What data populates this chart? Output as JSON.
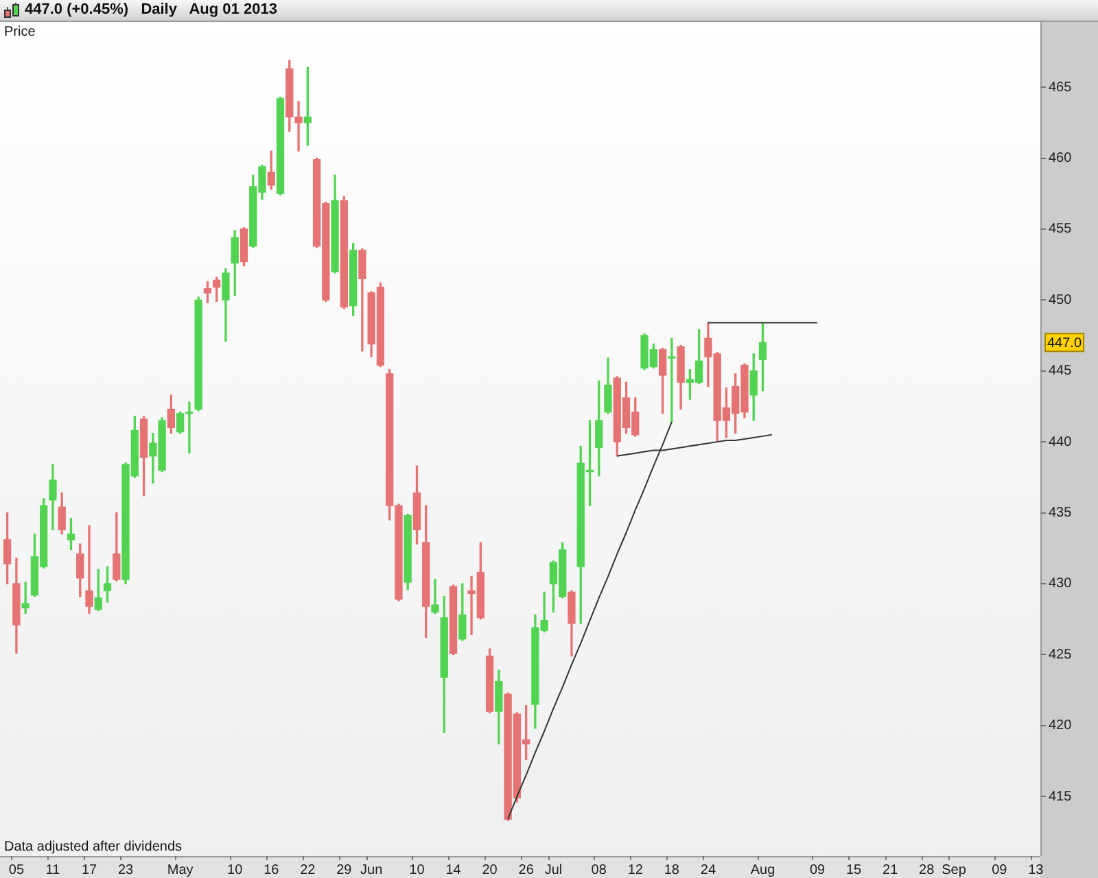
{
  "chart_data": {
    "type": "candlestick",
    "title": "447.0 (+0.45%)   Daily   Aug 01 2013",
    "ylabel": "Price",
    "annotations": [
      "Data adjusted after dividends",
      {
        "text": "447.0",
        "y": 447.0
      }
    ],
    "categories": [
      null,
      "05",
      null,
      null,
      null,
      "11",
      null,
      null,
      null,
      "17",
      null,
      null,
      null,
      "23",
      null,
      null,
      null,
      null,
      null,
      "May",
      null,
      null,
      null,
      null,
      null,
      "10",
      null,
      null,
      null,
      "16",
      null,
      null,
      null,
      "22",
      null,
      null,
      null,
      "29",
      null,
      null,
      "Jun",
      null,
      null,
      null,
      null,
      "10",
      null,
      null,
      null,
      "14",
      null,
      null,
      null,
      "20",
      null,
      null,
      null,
      "26",
      null,
      null,
      "Jul",
      null,
      null,
      null,
      null,
      "08",
      null,
      null,
      null,
      "12",
      null,
      null,
      null,
      "18",
      null,
      null,
      null,
      "24",
      null,
      null,
      null,
      null,
      null,
      "Aug",
      null,
      null,
      null,
      null,
      null,
      "09",
      null,
      null,
      null,
      "15",
      null,
      null,
      null,
      "21",
      null,
      null,
      null,
      "28",
      null,
      null,
      "Sep",
      null,
      null,
      null,
      null,
      "09",
      null,
      null,
      null,
      "13"
    ],
    "ohlc": [
      [
        433.1,
        435.0,
        430.0,
        431.4
      ],
      [
        430.0,
        431.8,
        425.1,
        427.1
      ],
      [
        428.3,
        430.1,
        427.9,
        428.6
      ],
      [
        429.2,
        433.5,
        429.1,
        431.9
      ],
      [
        431.2,
        436.0,
        431.1,
        435.5
      ],
      [
        435.9,
        438.4,
        433.8,
        437.3
      ],
      [
        435.4,
        436.4,
        433.5,
        433.8
      ],
      [
        433.1,
        434.6,
        432.4,
        433.5
      ],
      [
        432.1,
        432.8,
        429.1,
        430.4
      ],
      [
        429.5,
        434.1,
        427.9,
        428.4
      ],
      [
        428.2,
        431.0,
        428.1,
        429.0
      ],
      [
        429.5,
        431.2,
        428.7,
        430.0
      ],
      [
        432.1,
        435.0,
        430.2,
        430.3
      ],
      [
        430.3,
        438.5,
        430.0,
        438.4
      ],
      [
        437.6,
        441.8,
        437.5,
        440.8
      ],
      [
        441.6,
        441.8,
        436.2,
        438.9
      ],
      [
        439.0,
        440.6,
        437.1,
        439.9
      ],
      [
        438.0,
        441.7,
        437.9,
        441.5
      ],
      [
        442.3,
        443.3,
        440.6,
        441.0
      ],
      [
        440.7,
        442.1,
        440.6,
        442.0
      ],
      [
        442.0,
        442.8,
        439.2,
        442.0
      ],
      [
        442.3,
        450.2,
        442.2,
        450.0
      ],
      [
        450.8,
        451.3,
        449.8,
        450.5
      ],
      [
        451.4,
        451.6,
        449.9,
        450.9
      ],
      [
        450.0,
        452.2,
        447.1,
        451.9
      ],
      [
        452.6,
        454.9,
        450.3,
        454.4
      ],
      [
        455.0,
        455.1,
        452.4,
        452.7
      ],
      [
        453.8,
        458.8,
        453.7,
        458.0
      ],
      [
        457.6,
        459.5,
        457.1,
        459.4
      ],
      [
        459.0,
        460.5,
        457.8,
        458.1
      ],
      [
        457.5,
        464.3,
        457.4,
        464.2
      ],
      [
        466.3,
        466.9,
        461.9,
        462.9
      ],
      [
        462.9,
        464.0,
        460.5,
        462.5
      ],
      [
        462.5,
        466.4,
        460.9,
        462.9
      ],
      [
        459.9,
        460.0,
        453.7,
        453.8
      ],
      [
        456.8,
        456.9,
        449.9,
        450.0
      ],
      [
        452.0,
        458.8,
        451.9,
        457.0
      ],
      [
        457.0,
        457.3,
        449.4,
        449.5
      ],
      [
        449.6,
        454.0,
        448.9,
        453.5
      ],
      [
        453.5,
        453.6,
        446.4,
        451.5
      ],
      [
        450.5,
        450.6,
        446.0,
        446.9
      ],
      [
        450.9,
        451.2,
        445.3,
        445.4
      ],
      [
        444.8,
        445.1,
        434.5,
        435.5
      ],
      [
        435.5,
        435.6,
        428.8,
        428.9
      ],
      [
        430.1,
        434.9,
        429.6,
        434.8
      ],
      [
        436.4,
        438.3,
        432.8,
        433.8
      ],
      [
        432.9,
        435.5,
        426.2,
        428.4
      ],
      [
        428.0,
        430.3,
        427.9,
        428.5
      ],
      [
        423.4,
        429.1,
        419.5,
        427.6
      ],
      [
        429.8,
        429.9,
        425.0,
        425.1
      ],
      [
        426.1,
        430.0,
        426.0,
        427.8
      ],
      [
        429.5,
        430.5,
        426.4,
        429.3
      ],
      [
        430.8,
        432.9,
        427.5,
        427.6
      ],
      [
        424.9,
        425.4,
        420.9,
        421.0
      ],
      [
        421.0,
        423.9,
        418.7,
        423.1
      ],
      [
        422.2,
        422.3,
        413.3,
        413.4
      ],
      [
        420.8,
        420.9,
        414.6,
        414.9
      ],
      [
        419.0,
        421.4,
        417.6,
        418.7
      ],
      [
        421.5,
        427.8,
        419.8,
        426.9
      ],
      [
        426.7,
        429.4,
        426.6,
        427.4
      ],
      [
        430.0,
        431.6,
        428.0,
        431.5
      ],
      [
        429.1,
        432.9,
        429.0,
        432.4
      ],
      [
        429.4,
        429.5,
        424.9,
        427.2
      ],
      [
        431.2,
        439.7,
        427.2,
        438.5
      ],
      [
        437.9,
        441.5,
        435.5,
        437.9
      ],
      [
        439.6,
        444.3,
        437.6,
        441.5
      ],
      [
        442.1,
        445.9,
        442.0,
        444.0
      ],
      [
        444.5,
        444.6,
        439.0,
        440.0
      ],
      [
        443.1,
        444.2,
        440.6,
        441.0
      ],
      [
        442.1,
        443.1,
        440.4,
        440.5
      ],
      [
        445.2,
        447.6,
        445.1,
        447.5
      ],
      [
        445.3,
        446.9,
        445.2,
        446.5
      ],
      [
        446.5,
        446.6,
        442.0,
        444.7
      ],
      [
        445.9,
        447.3,
        441.4,
        446.0
      ],
      [
        446.7,
        446.8,
        442.3,
        444.2
      ],
      [
        444.2,
        445.1,
        443.0,
        444.4
      ],
      [
        444.2,
        447.9,
        444.1,
        445.7
      ],
      [
        447.3,
        448.4,
        443.9,
        446.0
      ],
      [
        446.2,
        446.3,
        440.0,
        441.5
      ],
      [
        442.4,
        443.8,
        440.3,
        441.5
      ],
      [
        443.9,
        444.8,
        440.6,
        442.0
      ],
      [
        445.4,
        445.5,
        441.7,
        442.1
      ],
      [
        443.3,
        446.2,
        441.5,
        445.0
      ],
      [
        445.8,
        448.4,
        443.6,
        447.0
      ],
      null,
      null,
      null,
      null,
      null,
      null,
      null,
      null,
      null,
      null,
      null,
      null,
      null,
      null,
      null,
      null,
      null,
      null,
      null,
      null,
      null,
      null,
      null,
      null,
      null,
      null,
      null,
      null,
      null,
      null
    ],
    "colors": [
      "#e57373",
      "#e57373",
      "#52d452",
      "#52d452",
      "#52d452",
      "#52d452",
      "#e57373",
      "#52d452",
      "#e57373",
      "#e57373",
      "#52d452",
      "#52d452",
      "#e57373",
      "#52d452",
      "#52d452",
      "#e57373",
      "#52d452",
      "#52d452",
      "#e57373",
      "#52d452",
      "#52d452",
      "#52d452",
      "#e57373",
      "#e57373",
      "#52d452",
      "#52d452",
      "#e57373",
      "#52d452",
      "#52d452",
      "#e57373",
      "#52d452",
      "#e57373",
      "#e57373",
      "#52d452",
      "#e57373",
      "#e57373",
      "#52d452",
      "#e57373",
      "#52d452",
      "#e57373",
      "#e57373",
      "#e57373",
      "#e57373",
      "#e57373",
      "#52d452",
      "#e57373",
      "#e57373",
      "#52d452",
      "#52d452",
      "#e57373",
      "#52d452",
      "#e57373",
      "#e57373",
      "#e57373",
      "#52d452",
      "#e57373",
      "#e57373",
      "#e57373",
      "#52d452",
      "#52d452",
      "#52d452",
      "#52d452",
      "#e57373",
      "#52d452",
      "#52d452",
      "#52d452",
      "#52d452",
      "#e57373",
      "#e57373",
      "#e57373",
      "#52d452",
      "#52d452",
      "#e57373",
      "#52d452",
      "#e57373",
      "#52d452",
      "#52d452",
      "#e57373",
      "#e57373",
      "#e57373",
      "#e57373",
      "#e57373",
      "#52d452",
      "#52d452",
      null,
      null,
      null,
      null,
      null,
      null,
      null,
      null,
      null,
      null,
      null,
      null,
      null,
      null,
      null,
      null,
      null,
      null,
      null,
      null,
      null,
      null,
      null,
      null,
      null,
      null,
      null,
      null,
      null,
      null
    ],
    "series": [
      {
        "type": "line",
        "color": "#333333",
        "values": [
          null,
          null,
          null,
          null,
          null,
          null,
          null,
          null,
          null,
          null,
          null,
          null,
          null,
          null,
          null,
          null,
          null,
          null,
          null,
          null,
          null,
          null,
          null,
          null,
          null,
          null,
          null,
          null,
          null,
          null,
          null,
          null,
          null,
          null,
          null,
          null,
          null,
          null,
          null,
          null,
          null,
          null,
          null,
          null,
          null,
          null,
          null,
          null,
          null,
          null,
          null,
          null,
          null,
          null,
          null,
          413.4,
          415.0,
          416.5,
          418.1,
          419.6,
          421.2,
          422.7,
          424.3,
          425.8,
          427.4,
          429.0,
          430.5,
          432.1,
          433.6,
          435.2,
          436.7,
          438.3,
          439.8,
          441.4,
          null,
          null,
          null,
          null,
          null,
          null,
          null,
          null,
          null,
          null,
          null,
          null,
          null,
          null,
          null,
          null,
          null,
          null,
          null,
          null,
          null,
          null,
          null,
          null,
          null,
          null,
          null,
          null,
          null,
          null,
          null,
          null,
          null,
          null,
          null,
          null,
          null,
          null,
          null,
          null
        ]
      },
      {
        "type": "line",
        "color": "#333333",
        "values": [
          null,
          null,
          null,
          null,
          null,
          null,
          null,
          null,
          null,
          null,
          null,
          null,
          null,
          null,
          null,
          null,
          null,
          null,
          null,
          null,
          null,
          null,
          null,
          null,
          null,
          null,
          null,
          null,
          null,
          null,
          null,
          null,
          null,
          null,
          null,
          null,
          null,
          null,
          null,
          null,
          null,
          null,
          null,
          null,
          null,
          null,
          null,
          null,
          null,
          null,
          null,
          null,
          null,
          null,
          null,
          null,
          null,
          null,
          null,
          null,
          null,
          null,
          null,
          null,
          null,
          null,
          null,
          439.0,
          439.1,
          439.2,
          439.3,
          439.4,
          439.4,
          439.5,
          439.6,
          439.7,
          439.8,
          439.9,
          440.0,
          440.1,
          440.1,
          440.2,
          440.3,
          440.4,
          440.5,
          null,
          null,
          null,
          null,
          null,
          null,
          null,
          null,
          null,
          null,
          null,
          null,
          null,
          null,
          null,
          null,
          null,
          null,
          null,
          null,
          null,
          null,
          null,
          null,
          null,
          null,
          null,
          null,
          null
        ]
      },
      {
        "type": "line",
        "color": "#333333",
        "values": [
          null,
          null,
          null,
          null,
          null,
          null,
          null,
          null,
          null,
          null,
          null,
          null,
          null,
          null,
          null,
          null,
          null,
          null,
          null,
          null,
          null,
          null,
          null,
          null,
          null,
          null,
          null,
          null,
          null,
          null,
          null,
          null,
          null,
          null,
          null,
          null,
          null,
          null,
          null,
          null,
          null,
          null,
          null,
          null,
          null,
          null,
          null,
          null,
          null,
          null,
          null,
          null,
          null,
          null,
          null,
          null,
          null,
          null,
          null,
          null,
          null,
          null,
          null,
          null,
          null,
          null,
          null,
          null,
          null,
          null,
          null,
          null,
          null,
          null,
          null,
          null,
          null,
          448.4,
          448.4,
          448.4,
          448.4,
          448.4,
          448.4,
          448.4,
          448.4,
          448.4,
          448.4,
          448.4,
          448.4,
          448.4,
          null,
          null,
          null,
          null,
          null,
          null,
          null,
          null,
          null,
          null,
          null,
          null,
          null,
          null,
          null,
          null,
          null,
          null,
          null,
          null,
          null,
          null,
          null,
          null
        ]
      }
    ],
    "ylim": [
      410.8,
      469.6
    ],
    "yticks": [
      415,
      420,
      425,
      430,
      435,
      440,
      445,
      450,
      455,
      460,
      465
    ]
  }
}
